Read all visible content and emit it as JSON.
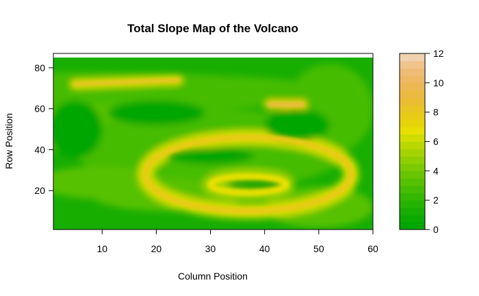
{
  "chart_data": {
    "type": "heatmap",
    "title": "Total Slope Map of the Volcano",
    "xlabel": "Column Position",
    "ylabel": "Row Position",
    "xlim": [
      1,
      60
    ],
    "ylim": [
      1,
      87
    ],
    "x_ticks": [
      10,
      20,
      30,
      40,
      50,
      60
    ],
    "y_ticks": [
      20,
      40,
      60,
      80
    ],
    "colorbar": {
      "range": [
        0,
        12
      ],
      "ticks": [
        0,
        2,
        4,
        6,
        8,
        10,
        12
      ],
      "levels": [
        0,
        0.5,
        1,
        1.5,
        2,
        2.5,
        3,
        3.5,
        4,
        4.5,
        5,
        5.5,
        6,
        6.5,
        7,
        7.5,
        8,
        8.5,
        9,
        9.5,
        10,
        10.5,
        11,
        11.5,
        12
      ],
      "colors": [
        "#00A600",
        "#0BAA00",
        "#18AE00",
        "#26B300",
        "#35B700",
        "#45BC00",
        "#56C100",
        "#68C500",
        "#7BCA00",
        "#8FCF00",
        "#A4D400",
        "#BAD800",
        "#D1DD00",
        "#E6DF00",
        "#E7D408",
        "#E8CB17",
        "#E9C425",
        "#EABD34",
        "#EBBA44",
        "#ECB854",
        "#EDB964",
        "#EEBC75",
        "#F0C48C",
        "#F1D2AE"
      ],
      "top_color": "#F2F2F2"
    },
    "features": [
      {
        "description_kind": "crater-rim-ring",
        "center": [
          37,
          28
        ],
        "radius_x": 19,
        "radius_y": 18,
        "peak_slope": 9
      },
      {
        "description_kind": "inner-rim",
        "center": [
          37,
          23
        ],
        "radius_x": 7,
        "radius_y": 4,
        "peak_slope": 8
      },
      {
        "description_kind": "upper-ridge",
        "from": [
          5,
          72
        ],
        "to": [
          24,
          74
        ],
        "peak_slope": 9
      },
      {
        "description_kind": "right-ridge",
        "from": [
          41,
          62
        ],
        "to": [
          47,
          62
        ],
        "peak_slope": 10
      }
    ]
  }
}
